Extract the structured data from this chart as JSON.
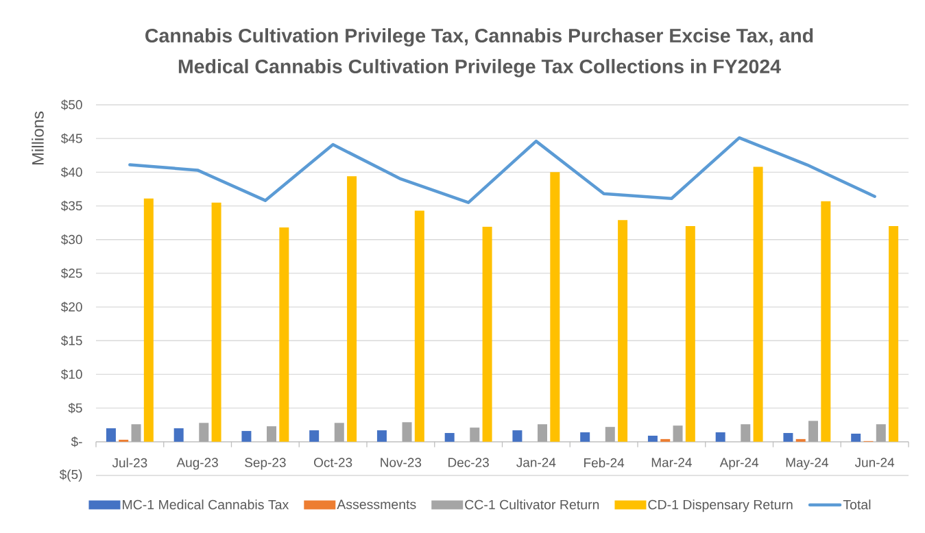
{
  "chart_data": {
    "type": "bar",
    "title": "Cannabis Cultivation Privilege Tax, Cannabis Purchaser Excise Tax, and Medical Cannabis Cultivation Privilege Tax Collections in FY2024",
    "ylabel": "Millions",
    "categories": [
      "Jul-23",
      "Aug-23",
      "Sep-23",
      "Oct-23",
      "Nov-23",
      "Dec-23",
      "Jan-24",
      "Feb-24",
      "Mar-24",
      "Apr-24",
      "May-24",
      "Jun-24"
    ],
    "series": [
      {
        "name": "MC-1 Medical Cannabis Tax",
        "color": "#4472c4",
        "values": [
          2.0,
          2.0,
          1.6,
          1.7,
          1.7,
          1.3,
          1.7,
          1.4,
          0.9,
          1.4,
          1.3,
          1.2
        ]
      },
      {
        "name": "Assessments",
        "color": "#ed7d31",
        "values": [
          0.3,
          0,
          0,
          0,
          0,
          0,
          0,
          0,
          0.4,
          0,
          0.4,
          0.1
        ]
      },
      {
        "name": "CC-1 Cultivator Return",
        "color": "#a5a5a5",
        "values": [
          2.6,
          2.8,
          2.3,
          2.8,
          2.9,
          2.1,
          2.6,
          2.2,
          2.4,
          2.6,
          3.1,
          2.6
        ]
      },
      {
        "name": "CD-1 Dispensary Return",
        "color": "#ffc000",
        "values": [
          36.1,
          35.5,
          31.8,
          39.4,
          34.3,
          31.9,
          40.0,
          32.9,
          32.0,
          40.8,
          35.7,
          32.0
        ]
      },
      {
        "name": "Total",
        "type": "line",
        "color": "#5b9bd5",
        "values": [
          41.1,
          40.3,
          35.8,
          44.1,
          39.0,
          35.5,
          44.6,
          36.8,
          36.1,
          45.1,
          41.1,
          36.4
        ]
      }
    ],
    "ylim": [
      -5,
      50
    ],
    "yticks": [
      {
        "value": -5,
        "label": "$(5)"
      },
      {
        "value": 0,
        "label": "$-"
      },
      {
        "value": 5,
        "label": "$5"
      },
      {
        "value": 10,
        "label": "$10"
      },
      {
        "value": 15,
        "label": "$15"
      },
      {
        "value": 20,
        "label": "$20"
      },
      {
        "value": 25,
        "label": "$25"
      },
      {
        "value": 30,
        "label": "$30"
      },
      {
        "value": 35,
        "label": "$35"
      },
      {
        "value": 40,
        "label": "$40"
      },
      {
        "value": 45,
        "label": "$45"
      },
      {
        "value": 50,
        "label": "$50"
      }
    ],
    "grid": "y",
    "legend": "bottom",
    "line_style": "solid"
  }
}
